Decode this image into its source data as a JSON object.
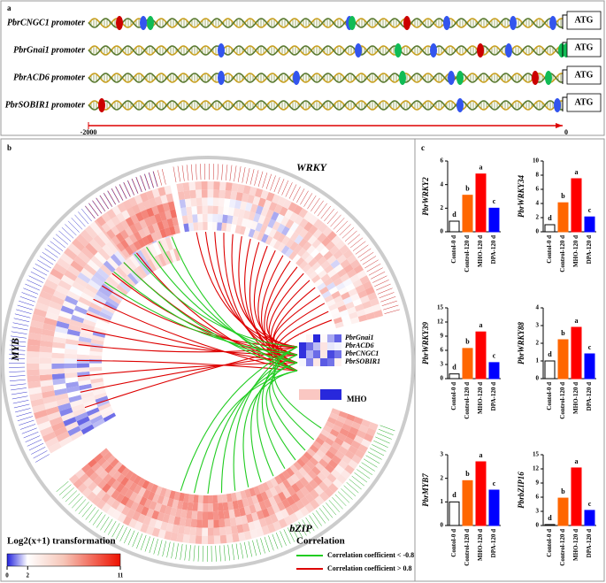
{
  "panel_a": {
    "label": "a",
    "rows": [
      "PbrCNGC1 promoter",
      "PbrGnai1 promoter",
      "PbrACD6 promoter",
      "PbrSOBIR1 promoter"
    ],
    "start_codon": "ATG",
    "axis_start": "-2000",
    "axis_end": "0"
  },
  "panel_b": {
    "label": "b",
    "groups": [
      "WRKY",
      "MYB",
      "bZIP"
    ],
    "genes": [
      "PbrGnai1",
      "PbrACD6",
      "PbrCNGC1",
      "PbrSOBIR1"
    ],
    "treatment": "MHO",
    "scale_title": "Log2(x+1) transformation",
    "scale_lim": [
      0,
      11
    ],
    "scale_ticks": [
      0,
      2,
      11
    ],
    "legend_title": "Correlation",
    "legend_items": [
      "Correlation coefficient < -0.8",
      "Correlation coefficient > 0.8"
    ],
    "legend_colors": [
      "#22cc22",
      "#dd0000"
    ]
  },
  "panel_c": {
    "label": "c"
  },
  "chart_data": [
    {
      "type": "bar",
      "ylabel": "PbrWRKY2",
      "categories": [
        "Contol-0 d",
        "Control-120 d",
        "MHO-120 d",
        "DPA-120 d"
      ],
      "values": [
        0.9,
        3.1,
        4.9,
        2.0
      ],
      "significance": [
        "d",
        "b",
        "a",
        "c"
      ],
      "colors": [
        "#ffffff",
        "#ff6600",
        "#ff0000",
        "#0000ff"
      ],
      "ylim": [
        0,
        6
      ],
      "yticks": [
        0,
        2,
        4,
        6
      ]
    },
    {
      "type": "bar",
      "ylabel": "PbrWRKY34",
      "categories": [
        "Contol-0 d",
        "Control-120 d",
        "MHO-120 d",
        "DPA-120 d"
      ],
      "values": [
        1.0,
        4.1,
        7.5,
        2.1
      ],
      "significance": [
        "d",
        "b",
        "a",
        "c"
      ],
      "colors": [
        "#ffffff",
        "#ff6600",
        "#ff0000",
        "#0000ff"
      ],
      "ylim": [
        0,
        10
      ],
      "yticks": [
        0,
        2,
        4,
        6,
        8,
        10
      ]
    },
    {
      "type": "bar",
      "ylabel": "PbrWRKY39",
      "categories": [
        "Contol-0 d",
        "Control-120 d",
        "MHO-120 d",
        "DPA-120 d"
      ],
      "values": [
        1.0,
        6.4,
        9.9,
        3.4
      ],
      "significance": [
        "d",
        "b",
        "a",
        "c"
      ],
      "colors": [
        "#ffffff",
        "#ff6600",
        "#ff0000",
        "#0000ff"
      ],
      "ylim": [
        0,
        15
      ],
      "yticks": [
        0,
        3,
        6,
        9,
        12,
        15
      ]
    },
    {
      "type": "bar",
      "ylabel": "PbrWRKY88",
      "categories": [
        "Contol-0 d",
        "Control-120 d",
        "MHO-120 d",
        "DPA-120 d"
      ],
      "values": [
        1.0,
        2.2,
        2.9,
        1.4
      ],
      "significance": [
        "d",
        "b",
        "a",
        "c"
      ],
      "colors": [
        "#ffffff",
        "#ff6600",
        "#ff0000",
        "#0000ff"
      ],
      "ylim": [
        0,
        4
      ],
      "yticks": [
        0,
        1,
        2,
        3,
        4
      ]
    },
    {
      "type": "bar",
      "ylabel": "PbrMYB7",
      "categories": [
        "Contol-0 d",
        "Control-120 d",
        "MHO-120 d",
        "DPA-120 d"
      ],
      "values": [
        1.0,
        1.9,
        2.7,
        1.5
      ],
      "significance": [
        "d",
        "b",
        "a",
        "c"
      ],
      "colors": [
        "#ffffff",
        "#ff6600",
        "#ff0000",
        "#0000ff"
      ],
      "ylim": [
        0,
        3
      ],
      "yticks": [
        0,
        1,
        2,
        3
      ]
    },
    {
      "type": "bar",
      "ylabel": "PbrbZIP16",
      "categories": [
        "Contol-0 d",
        "Control-120 d",
        "MHO-120 d",
        "DPA-120 d"
      ],
      "values": [
        0.2,
        5.8,
        12.2,
        3.2
      ],
      "significance": [
        "d",
        "b",
        "a",
        "c"
      ],
      "colors": [
        "#ffffff",
        "#ff6600",
        "#ff0000",
        "#0000ff"
      ],
      "ylim": [
        0,
        15
      ],
      "yticks": [
        0,
        3,
        6,
        9,
        12,
        15
      ]
    }
  ]
}
